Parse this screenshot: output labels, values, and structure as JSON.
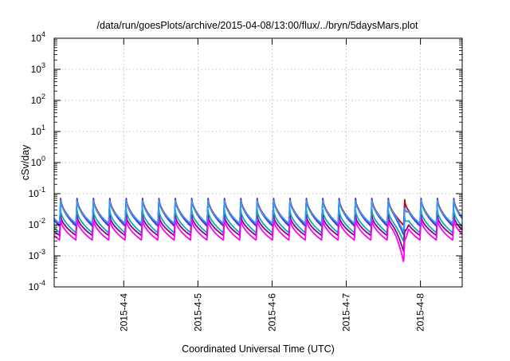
{
  "chart_data": {
    "type": "line",
    "title": "/data/run/goesPlots/archive/2015-04-08/13:00/flux/../bryn/5daysMars.plot",
    "xlabel": "Coordinated Universal Time (UTC)",
    "ylabel": "cSv/day",
    "xlim": [
      "2015-04-03 01:30",
      "2015-04-08 13:30"
    ],
    "x_ticks": [
      "2015-4-4",
      "2015-4-5",
      "2015-4-6",
      "2015-4-7",
      "2015-4-8"
    ],
    "y_scale": "log",
    "ylim": [
      0.0001,
      10000
    ],
    "y_ticks": [
      {
        "value": 0.0001,
        "base": "10",
        "exp": "-4"
      },
      {
        "value": 0.001,
        "base": "10",
        "exp": "-3"
      },
      {
        "value": 0.01,
        "base": "10",
        "exp": "-2"
      },
      {
        "value": 0.1,
        "base": "10",
        "exp": "-1"
      },
      {
        "value": 1,
        "base": "10",
        "exp": "0"
      },
      {
        "value": 10,
        "base": "10",
        "exp": "1"
      },
      {
        "value": 100,
        "base": "10",
        "exp": "2"
      },
      {
        "value": 1000,
        "base": "10",
        "exp": "3"
      },
      {
        "value": 10000,
        "base": "10",
        "exp": "4"
      }
    ],
    "grid": true,
    "cycle_hours": 5.3,
    "first_peak": "2015-04-03 03:15",
    "dip_time": "2015-04-07 18:40",
    "series": [
      {
        "color": "#cc0000",
        "peak": 0.07,
        "trough": 0.0105
      },
      {
        "color": "#3a3ae0",
        "peak": 0.068,
        "trough": 0.009
      },
      {
        "color": "#00b0b0",
        "peak": 0.03,
        "trough": 0.0055
      },
      {
        "color": "#8b008b",
        "peak": 0.02,
        "trough": 0.0045
      },
      {
        "color": "#ff00ff",
        "peak": 0.015,
        "trough": 0.0032
      },
      {
        "color": "#3399ff",
        "peak": 0.06,
        "trough": 0.011
      }
    ]
  }
}
